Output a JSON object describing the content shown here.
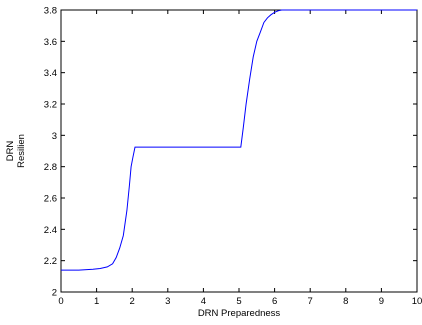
{
  "chart_data": {
    "type": "line",
    "xlabel": "DRN Preparedness",
    "ylabel_lines": [
      "DRN",
      "Resilien"
    ],
    "xlim": [
      0,
      10
    ],
    "ylim": [
      2,
      3.8
    ],
    "xticks": [
      0,
      1,
      2,
      3,
      4,
      5,
      6,
      7,
      8,
      9,
      10
    ],
    "yticks": [
      2,
      2.2,
      2.4,
      2.6,
      2.8,
      3,
      3.2,
      3.4,
      3.6,
      3.8
    ],
    "xtick_labels": [
      "0",
      "1",
      "2",
      "3",
      "4",
      "5",
      "6",
      "7",
      "8",
      "9",
      "10"
    ],
    "ytick_labels": [
      "2",
      "2.2",
      "2.4",
      "2.6",
      "2.8",
      "3",
      "3.2",
      "3.4",
      "3.6",
      "3.8"
    ],
    "grid": false,
    "series": [
      {
        "color": "#0000ff",
        "x": [
          0,
          0.5,
          0.9,
          1.1,
          1.3,
          1.45,
          1.55,
          1.65,
          1.75,
          1.85,
          1.92,
          1.97,
          2.02,
          2.08,
          2.15,
          3,
          4,
          5.05,
          5.12,
          5.2,
          5.3,
          5.4,
          5.5,
          5.6,
          5.7,
          5.8,
          5.9,
          6.0,
          6.1,
          6.2,
          7,
          8,
          9,
          10
        ],
        "y": [
          2.14,
          2.14,
          2.145,
          2.15,
          2.16,
          2.18,
          2.22,
          2.28,
          2.36,
          2.52,
          2.68,
          2.8,
          2.86,
          2.925,
          2.925,
          2.925,
          2.925,
          2.925,
          3.05,
          3.2,
          3.36,
          3.5,
          3.6,
          3.66,
          3.72,
          3.75,
          3.77,
          3.785,
          3.795,
          3.8,
          3.8,
          3.8,
          3.8,
          3.8
        ]
      }
    ]
  }
}
